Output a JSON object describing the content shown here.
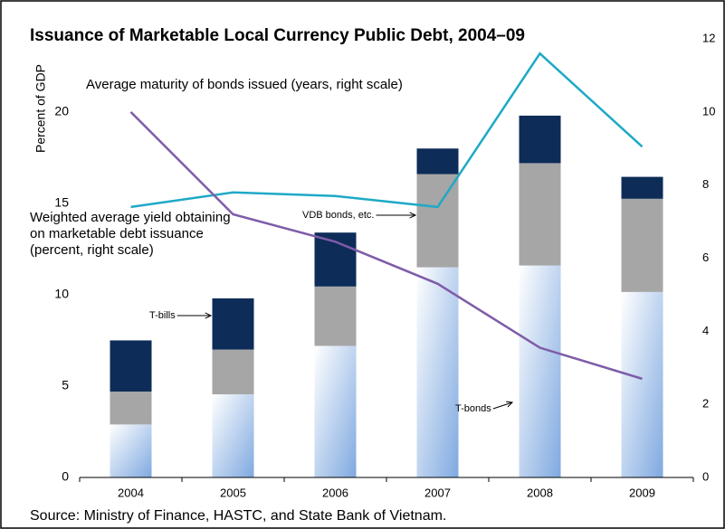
{
  "chart_data": {
    "type": "bar",
    "title": "Issuance of Marketable Local Currency Public Debt, 2004–09",
    "y_label": "Percent of GDP",
    "source": "Source: Ministry of Finance, HASTC, and State Bank of Vietnam.",
    "categories": [
      "2004",
      "2005",
      "2006",
      "2007",
      "2008",
      "2009"
    ],
    "stacked": true,
    "series": [
      {
        "name": "T-bonds",
        "color": "#9dbde6",
        "values": [
          2.9,
          4.55,
          7.2,
          11.5,
          11.6,
          10.15
        ]
      },
      {
        "name": "VDB bonds, etc.",
        "color": "#a6a6a6",
        "values": [
          1.8,
          2.45,
          3.25,
          5.1,
          5.6,
          5.1
        ]
      },
      {
        "name": "T-bills",
        "color": "#0e2c58",
        "values": [
          2.8,
          2.8,
          2.95,
          1.4,
          2.6,
          1.2
        ]
      },
      {
        "name": "Average maturity of bonds issued (years, right scale)",
        "type": "line",
        "axis": "y2",
        "color": "#1ea9c6",
        "values": [
          7.4,
          7.8,
          7.7,
          7.4,
          11.6,
          9.05
        ]
      },
      {
        "name": "Weighted average yield obtaining on marketable debt issuance (percent, right scale)",
        "type": "line",
        "axis": "y2",
        "color": "#7e5ca8",
        "values": [
          10.0,
          7.2,
          6.45,
          5.3,
          3.55,
          2.7
        ]
      }
    ],
    "ylim": [
      0,
      24
    ],
    "yticks": [
      0,
      5,
      10,
      15,
      20
    ],
    "y2lim": [
      0,
      12
    ],
    "y2ticks": [
      0,
      2,
      4,
      6,
      8,
      10,
      12
    ],
    "grid": false
  }
}
